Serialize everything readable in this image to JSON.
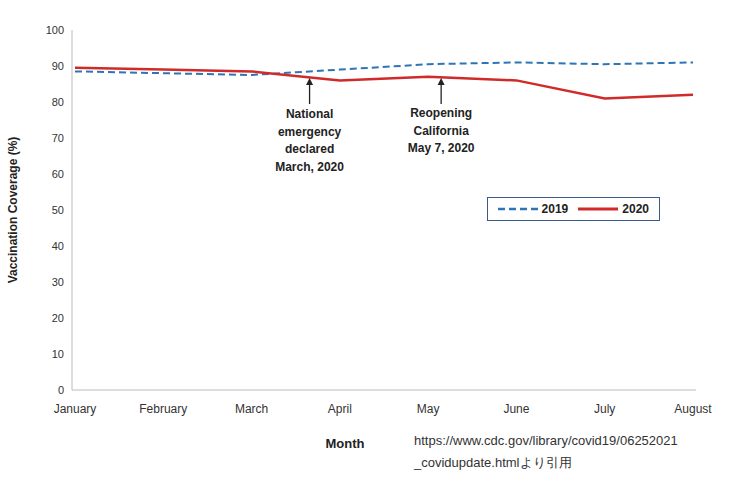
{
  "chart_data": {
    "type": "line",
    "categories": [
      "January",
      "February",
      "March",
      "April",
      "May",
      "June",
      "July",
      "August"
    ],
    "series": [
      {
        "name": "2019",
        "color": "#2e75b6",
        "line_style": "dashed",
        "values": [
          88.5,
          88,
          87.5,
          89,
          90.5,
          91,
          90.5,
          91
        ]
      },
      {
        "name": "2020",
        "color": "#d02a2a",
        "line_style": "solid",
        "values": [
          89.5,
          89,
          88.5,
          86,
          87,
          86,
          81,
          82
        ]
      }
    ],
    "x_label": "Month",
    "y_label": "Vaccination Coverage (%)",
    "ylim": [
      0,
      100
    ],
    "yticks": [
      0,
      10,
      20,
      30,
      40,
      50,
      60,
      70,
      80,
      90,
      100
    ],
    "grid": false,
    "legend": "right",
    "annotations": [
      {
        "category": "March",
        "lines": [
          "National",
          "emergency",
          "declared",
          "March, 2020"
        ]
      },
      {
        "category": "May",
        "lines": [
          "Reopening",
          "California",
          "May 7, 2020"
        ]
      }
    ],
    "source": [
      "https://www.cdc.gov/library/covid19/06252021",
      "_covidupdate.htmlより引用"
    ]
  }
}
